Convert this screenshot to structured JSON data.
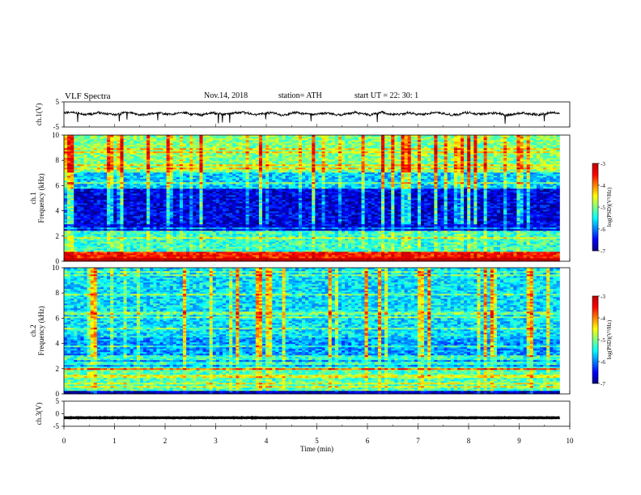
{
  "header": {
    "title": "VLF  Spectra",
    "date": "Nov.14, 2018",
    "station": "station= ATH",
    "start": "start  UT  =    22: 30: 1"
  },
  "chart_data": [
    {
      "type": "line",
      "panel": "ch1-waveform",
      "ylabel": "ch.1(V)",
      "ylim": [
        -5,
        5
      ],
      "yticks": [
        "5",
        "-5"
      ],
      "xlim": [
        0,
        10
      ],
      "trace_level_V": 0.3,
      "trace_extent_min": [
        0,
        9.8
      ],
      "color": "#000000"
    },
    {
      "type": "heatmap",
      "panel": "ch1-spectrogram",
      "ylabel": "ch.1\nFrequency  (kHz)",
      "ylim": [
        0,
        10
      ],
      "yticks": [
        "0",
        "2",
        "4",
        "6",
        "8",
        "10"
      ],
      "xlim": [
        0,
        10
      ],
      "data_extent_min": [
        0,
        9.8
      ],
      "colorbar": {
        "label": "log(PSD)(V²/Hz)",
        "range": [
          -7,
          -3
        ],
        "ticks": [
          "-3",
          "-4",
          "-5",
          "-6",
          "-7"
        ]
      }
    },
    {
      "type": "heatmap",
      "panel": "ch2-spectrogram",
      "ylabel": "ch.2\nFrequency  (kHz)",
      "ylim": [
        0,
        10
      ],
      "yticks": [
        "0",
        "2",
        "4",
        "6",
        "8",
        "10"
      ],
      "xlim": [
        0,
        10
      ],
      "data_extent_min": [
        0,
        9.8
      ],
      "colorbar": {
        "label": "log(PSD)(V²/Hz)",
        "range": [
          -7,
          -3
        ],
        "ticks": [
          "-3",
          "-4",
          "-5",
          "-6",
          "-7"
        ]
      }
    },
    {
      "type": "line",
      "panel": "ch3-waveform",
      "ylabel": "ch.3(V)",
      "ylim": [
        -5,
        5
      ],
      "yticks": [
        "5",
        "0",
        "-5"
      ],
      "xlim": [
        0,
        10
      ],
      "trace_level_V": -1.6,
      "trace_extent_min": [
        0,
        9.8
      ],
      "color": "#000000"
    }
  ],
  "xaxis": {
    "label": "Time  (min)",
    "ticks": [
      "0",
      "1",
      "2",
      "3",
      "4",
      "5",
      "6",
      "7",
      "8",
      "9",
      "10"
    ]
  }
}
